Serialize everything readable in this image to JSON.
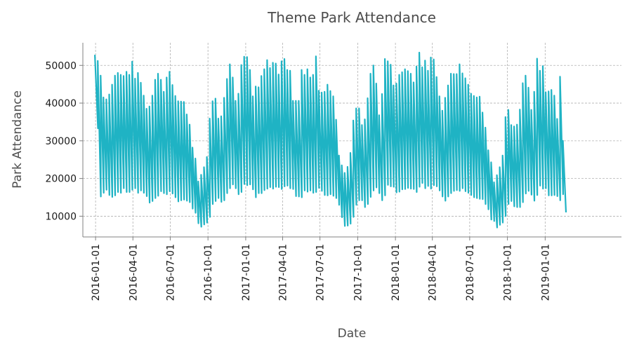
{
  "chart_data": {
    "type": "line",
    "title": "Theme Park Attendance",
    "xlabel": "Date",
    "ylabel": "Park Attendance",
    "x_range": [
      "2015-12-01",
      "2019-07-06"
    ],
    "ylim": [
      4500,
      56000
    ],
    "grid": true,
    "legend": "none",
    "series_color": "#1fb3c4",
    "x_ticks": [
      "2016-01-01",
      "2016-04-01",
      "2016-07-01",
      "2016-10-01",
      "2017-01-01",
      "2017-04-01",
      "2017-07-01",
      "2017-10-01",
      "2018-01-01",
      "2018-04-01",
      "2018-07-01",
      "2018-10-01",
      "2019-01-01"
    ],
    "y_ticks": [
      10000,
      20000,
      30000,
      40000,
      50000
    ],
    "series": [
      {
        "sampling": "weekly peak and trough",
        "x": [
          "2016-01-03",
          "2016-01-10",
          "2016-01-17",
          "2016-01-24",
          "2016-01-31",
          "2016-02-07",
          "2016-02-14",
          "2016-02-21",
          "2016-02-28",
          "2016-03-06",
          "2016-03-13",
          "2016-03-20",
          "2016-03-27",
          "2016-04-03",
          "2016-04-10",
          "2016-04-17",
          "2016-04-24",
          "2016-05-01",
          "2016-05-08",
          "2016-05-15",
          "2016-05-22",
          "2016-05-29",
          "2016-06-05",
          "2016-06-12",
          "2016-06-19",
          "2016-06-26",
          "2016-07-03",
          "2016-07-10",
          "2016-07-17",
          "2016-07-24",
          "2016-07-31",
          "2016-08-07",
          "2016-08-14",
          "2016-08-21",
          "2016-08-28",
          "2016-09-04",
          "2016-09-11",
          "2016-09-18",
          "2016-09-25",
          "2016-10-02",
          "2016-10-09",
          "2016-10-16",
          "2016-10-23",
          "2016-10-30",
          "2016-11-06",
          "2016-11-13",
          "2016-11-20",
          "2016-11-27",
          "2016-12-04",
          "2016-12-11",
          "2016-12-18",
          "2016-12-25",
          "2017-01-01",
          "2017-01-08",
          "2017-01-15",
          "2017-01-22",
          "2017-01-29",
          "2017-02-05",
          "2017-02-12",
          "2017-02-19",
          "2017-02-26",
          "2017-03-05",
          "2017-03-12",
          "2017-03-19",
          "2017-03-26",
          "2017-04-02",
          "2017-04-09",
          "2017-04-16",
          "2017-04-23",
          "2017-04-30",
          "2017-05-07",
          "2017-05-14",
          "2017-05-21",
          "2017-05-28",
          "2017-06-04",
          "2017-06-11",
          "2017-06-18",
          "2017-06-25",
          "2017-07-02",
          "2017-07-09",
          "2017-07-16",
          "2017-07-23",
          "2017-07-30",
          "2017-08-06",
          "2017-08-13",
          "2017-08-20",
          "2017-08-27",
          "2017-09-03",
          "2017-09-10",
          "2017-09-17",
          "2017-09-24",
          "2017-10-01",
          "2017-10-08",
          "2017-10-15",
          "2017-10-22",
          "2017-10-29",
          "2017-11-05",
          "2017-11-12",
          "2017-11-19",
          "2017-11-26",
          "2017-12-03",
          "2017-12-10",
          "2017-12-17",
          "2017-12-24",
          "2017-12-31",
          "2018-01-07",
          "2018-01-14",
          "2018-01-21",
          "2018-01-28",
          "2018-02-04",
          "2018-02-11",
          "2018-02-18",
          "2018-02-25",
          "2018-03-04",
          "2018-03-11",
          "2018-03-18",
          "2018-03-25",
          "2018-04-01",
          "2018-04-08",
          "2018-04-15",
          "2018-04-22",
          "2018-04-29",
          "2018-05-06",
          "2018-05-13",
          "2018-05-20",
          "2018-05-27",
          "2018-06-03",
          "2018-06-10",
          "2018-06-17",
          "2018-06-24",
          "2018-07-01",
          "2018-07-08",
          "2018-07-15",
          "2018-07-22",
          "2018-07-29",
          "2018-08-05",
          "2018-08-12",
          "2018-08-19",
          "2018-08-26",
          "2018-09-02",
          "2018-09-09",
          "2018-09-16",
          "2018-09-23",
          "2018-09-30",
          "2018-10-07",
          "2018-10-14",
          "2018-10-21",
          "2018-10-28",
          "2018-11-04",
          "2018-11-11",
          "2018-11-18",
          "2018-11-25",
          "2018-12-02",
          "2018-12-09",
          "2018-12-16",
          "2018-12-23",
          "2018-12-30",
          "2019-01-06",
          "2019-01-13",
          "2019-01-20",
          "2019-01-27",
          "2019-02-03",
          "2019-02-10",
          "2019-02-17",
          "2019-02-24",
          "2019-03-03",
          "2019-03-10",
          "2019-03-17",
          "2019-03-24",
          "2019-03-31"
        ],
        "peak": [
          52800,
          51200,
          47300,
          41500,
          41000,
          42300,
          44900,
          47300,
          48000,
          47500,
          47200,
          48300,
          47500,
          51000,
          46500,
          48000,
          45400,
          42000,
          38500,
          39100,
          42000,
          46200,
          47800,
          46200,
          43000,
          46800,
          48300,
          44800,
          41900,
          40500,
          40400,
          40300,
          37000,
          34300,
          28200,
          25300,
          19200,
          21000,
          23000,
          25700,
          35900,
          40500,
          41200,
          35900,
          36500,
          41400,
          46400,
          50300,
          46800,
          40600,
          42500,
          50100,
          52300,
          52200,
          48800,
          41800,
          44400,
          44200,
          47200,
          49000,
          51400,
          49300,
          50700,
          50500,
          47600,
          51100,
          51700,
          48800,
          48600,
          40600,
          40600,
          40600,
          48800,
          47500,
          49000,
          46800,
          47500,
          52400,
          43300,
          42800,
          43000,
          44900,
          43200,
          41800,
          35600,
          26100,
          23500,
          21500,
          23100,
          26800,
          35400,
          38600,
          38600,
          34200,
          35700,
          41300,
          47800,
          50000,
          45200,
          36800,
          42400,
          51700,
          51100,
          50200,
          44700,
          45200,
          47500,
          48200,
          49000,
          48500,
          47800,
          45500,
          49700,
          53400,
          49500,
          51300,
          48600,
          52100,
          51600,
          46900,
          41800,
          38000,
          41400,
          44700,
          47800,
          47700,
          47700,
          50300,
          47900,
          46600,
          44900,
          42500,
          41900,
          41500,
          41700,
          37500,
          33500,
          27500,
          24300,
          19000,
          20900,
          23000,
          26100,
          36300,
          38200,
          34200,
          33800,
          34300,
          38300,
          45300,
          47300,
          44100,
          38200,
          43000,
          51800,
          48600,
          49800,
          42900,
          43100,
          43500,
          42000,
          35800,
          47000,
          30000
        ],
        "trough": [
          33300,
          15200,
          16200,
          17000,
          15600,
          15100,
          15500,
          16400,
          16200,
          17400,
          16400,
          16400,
          17000,
          17400,
          16200,
          16800,
          16200,
          15300,
          13600,
          14000,
          14800,
          15400,
          16600,
          16100,
          15800,
          16600,
          16000,
          15000,
          13900,
          14200,
          14400,
          14100,
          13700,
          12000,
          10900,
          8100,
          7200,
          7800,
          8300,
          9800,
          13200,
          14000,
          14800,
          13800,
          14200,
          16100,
          17400,
          18400,
          17400,
          15800,
          16400,
          18500,
          18200,
          18400,
          17100,
          15000,
          16100,
          16100,
          16900,
          17300,
          17700,
          17300,
          17800,
          17700,
          17200,
          17900,
          18100,
          17400,
          17200,
          15300,
          15200,
          15000,
          16800,
          16500,
          16800,
          16200,
          16400,
          17500,
          16700,
          15600,
          15500,
          15800,
          15400,
          14800,
          13000,
          9700,
          7400,
          7500,
          8000,
          9800,
          13000,
          14200,
          14200,
          12400,
          13200,
          15100,
          16800,
          17600,
          16100,
          14200,
          15500,
          18300,
          17900,
          17800,
          16300,
          16500,
          17100,
          17200,
          17500,
          17300,
          17200,
          16400,
          17800,
          18800,
          17400,
          18000,
          17300,
          18200,
          17900,
          16800,
          15200,
          14100,
          15200,
          16100,
          16700,
          16900,
          16700,
          17400,
          16600,
          16200,
          15600,
          15000,
          14800,
          14600,
          14500,
          13200,
          11800,
          9100,
          8700,
          7000,
          7700,
          8300,
          10000,
          13200,
          14000,
          12600,
          12400,
          12400,
          13700,
          16000,
          16700,
          15700,
          14100,
          15600,
          18100,
          17300,
          17400,
          15500,
          15500,
          15600,
          15300,
          14200,
          15800,
          11000
        ]
      }
    ]
  }
}
